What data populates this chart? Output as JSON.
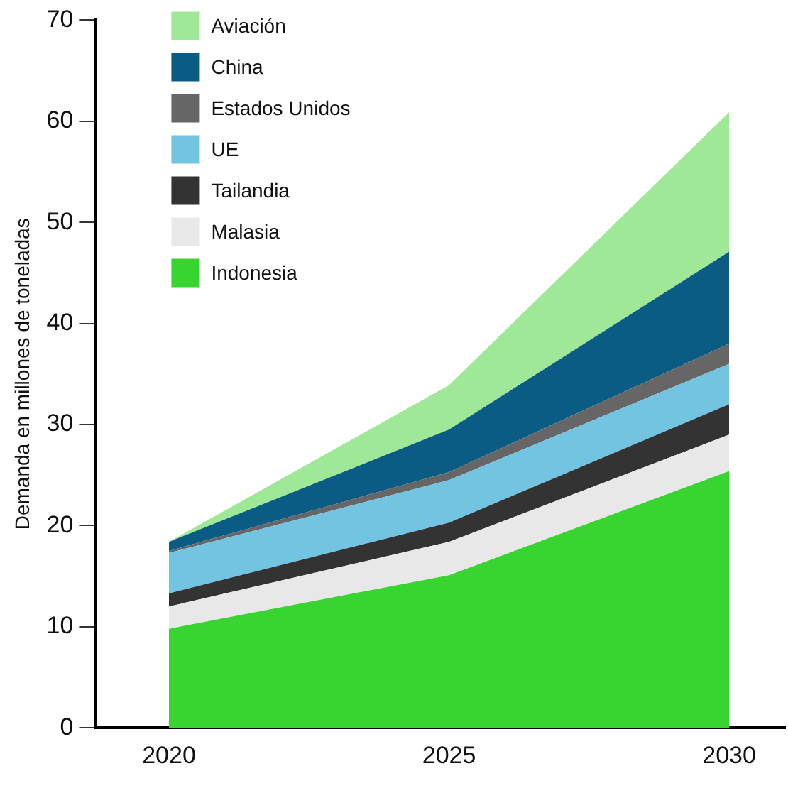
{
  "chart_data": {
    "type": "area",
    "stacked": true,
    "ylabel": "Demanda en millones de toneladas",
    "x": [
      2020,
      2025,
      2030
    ],
    "xlim": [
      2018.7,
      2031
    ],
    "xticks": [
      2020,
      2025,
      2030
    ],
    "ylim": [
      0,
      70
    ],
    "yticks": [
      0,
      10,
      20,
      30,
      40,
      50,
      60,
      70
    ],
    "grid": false,
    "legend": "top left",
    "series": [
      {
        "name": "Indonesia",
        "color": "#38d430",
        "values": [
          9.8,
          15.1,
          25.4
        ]
      },
      {
        "name": "Malasia",
        "color": "#e8e8e8",
        "values": [
          2.2,
          3.3,
          3.6
        ]
      },
      {
        "name": "Tailandia",
        "color": "#333333",
        "values": [
          1.3,
          1.9,
          3.0
        ]
      },
      {
        "name": "UE",
        "color": "#72c4e0",
        "values": [
          4.0,
          4.2,
          4.0
        ]
      },
      {
        "name": "Estados Unidos",
        "color": "#666666",
        "values": [
          0.2,
          0.8,
          2.0
        ]
      },
      {
        "name": "China",
        "color": "#0b5c85",
        "values": [
          0.9,
          4.2,
          9.1
        ]
      },
      {
        "name": "Aviación",
        "color": "#9ee898",
        "values": [
          0.0,
          4.4,
          13.8
        ]
      }
    ]
  }
}
